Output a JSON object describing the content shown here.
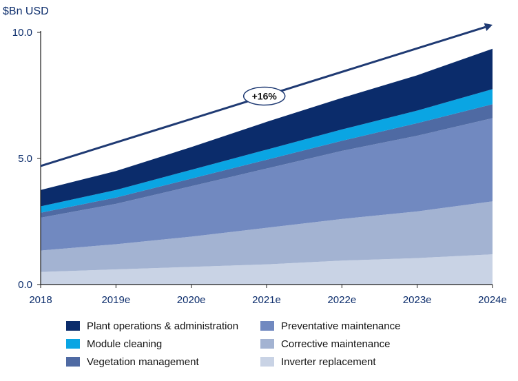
{
  "chart_data": {
    "type": "area",
    "stacked": true,
    "unit_label": "$Bn USD",
    "categories": [
      "2018",
      "2019e",
      "2020e",
      "2021e",
      "2022e",
      "2023e",
      "2024e"
    ],
    "ylim": [
      0,
      10
    ],
    "yticks": [
      {
        "value": 0,
        "label": "0.0"
      },
      {
        "value": 5,
        "label": "5.0"
      },
      {
        "value": 10,
        "label": "10.0"
      }
    ],
    "series": [
      {
        "name": "Inverter replacement",
        "color": "#c9d3e5",
        "values": [
          0.5,
          0.6,
          0.7,
          0.8,
          0.95,
          1.05,
          1.2
        ]
      },
      {
        "name": "Corrective maintenance",
        "color": "#a3b3d2",
        "values": [
          0.85,
          1.0,
          1.2,
          1.45,
          1.65,
          1.85,
          2.1
        ]
      },
      {
        "name": "Preventative maintenance",
        "color": "#7189c0",
        "values": [
          1.3,
          1.6,
          2.0,
          2.35,
          2.7,
          3.0,
          3.3
        ]
      },
      {
        "name": "Vegetation management",
        "color": "#4f6aa3",
        "values": [
          0.2,
          0.25,
          0.3,
          0.35,
          0.4,
          0.5,
          0.55
        ]
      },
      {
        "name": "Module cleaning",
        "color": "#0aa5e3",
        "values": [
          0.25,
          0.3,
          0.35,
          0.4,
          0.45,
          0.5,
          0.6
        ]
      },
      {
        "name": "Plant operations & administration",
        "color": "#0b2c6b",
        "values": [
          0.65,
          0.75,
          0.9,
          1.1,
          1.25,
          1.4,
          1.6
        ]
      }
    ],
    "legend_order": [
      "Plant operations & administration",
      "Preventative maintenance",
      "Module cleaning",
      "Corrective maintenance",
      "Vegetation management",
      "Inverter replacement"
    ],
    "annotation": {
      "label": "+16%",
      "arrow_start": {
        "x": "2018",
        "y": 4.7
      },
      "arrow_end": {
        "x": "2024e",
        "y": 10.3
      }
    },
    "colors": {
      "axis": "#1a1a1a",
      "arrow": "#1f3a73",
      "tick_text": "#0b2c6b"
    }
  }
}
